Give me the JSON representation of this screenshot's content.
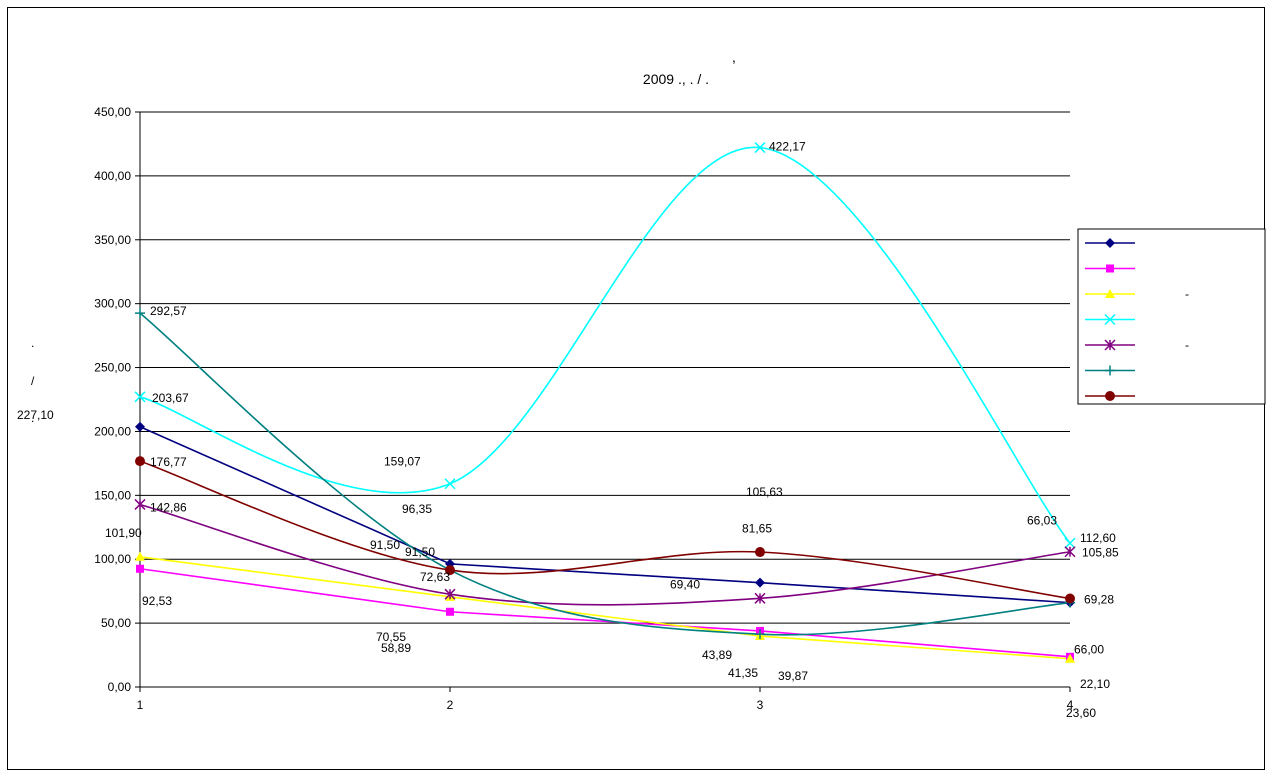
{
  "chart_data": {
    "type": "line",
    "title_line1": ",",
    "title_line2": "2009 .,       .     /     .",
    "ylabel_parts": [
      ".",
      "/",
      "."
    ],
    "ylim": [
      0,
      450
    ],
    "yticks": [
      "0,00",
      "50,00",
      "100,00",
      "150,00",
      "200,00",
      "250,00",
      "300,00",
      "350,00",
      "400,00",
      "450,00"
    ],
    "x": [
      "1",
      "2",
      "3",
      "4"
    ],
    "grid": true,
    "legend_position": "right",
    "series": [
      {
        "color": "#000080",
        "marker": "diamond",
        "smooth": false,
        "values": [
          203.67,
          96.35,
          81.65,
          66.03
        ],
        "labels": [
          "203,67",
          "96,35",
          "81,65",
          "66,03"
        ],
        "legend_suffix": ""
      },
      {
        "color": "#FF00FF",
        "marker": "square",
        "smooth": false,
        "values": [
          92.53,
          58.89,
          43.89,
          23.6
        ],
        "labels": [
          "92,53",
          "58,89",
          "43,89",
          "23,60"
        ],
        "legend_suffix": ""
      },
      {
        "color": "#FFFF00",
        "marker": "triangle",
        "smooth": false,
        "values": [
          101.9,
          70.55,
          39.87,
          22.1
        ],
        "labels": [
          "101,90",
          "70,55",
          "39,87",
          "22,10"
        ],
        "legend_suffix": "-"
      },
      {
        "color": "#00FFFF",
        "marker": "x",
        "smooth": true,
        "values": [
          227.1,
          159.07,
          422.17,
          112.6
        ],
        "labels": [
          "227,10",
          "159,07",
          "422,17",
          "112,60"
        ],
        "legend_suffix": ""
      },
      {
        "color": "#800080",
        "marker": "star",
        "smooth": true,
        "values": [
          142.86,
          72.63,
          69.4,
          105.85
        ],
        "labels": [
          "142,86",
          "72,63",
          "69,40",
          "105,85"
        ],
        "legend_suffix": "-"
      },
      {
        "color": "#008080",
        "marker": "plus",
        "smooth": true,
        "values": [
          292.57,
          91.5,
          41.35,
          66.0
        ],
        "labels": [
          "292,57",
          "91,50",
          "41,35",
          "66,00"
        ],
        "legend_suffix": ""
      },
      {
        "color": "#800000",
        "marker": "circle",
        "smooth": true,
        "values": [
          176.77,
          91.5,
          105.63,
          69.28
        ],
        "labels": [
          "176,77",
          "91,50",
          "105,63",
          "69,28"
        ],
        "legend_suffix": ""
      }
    ]
  }
}
